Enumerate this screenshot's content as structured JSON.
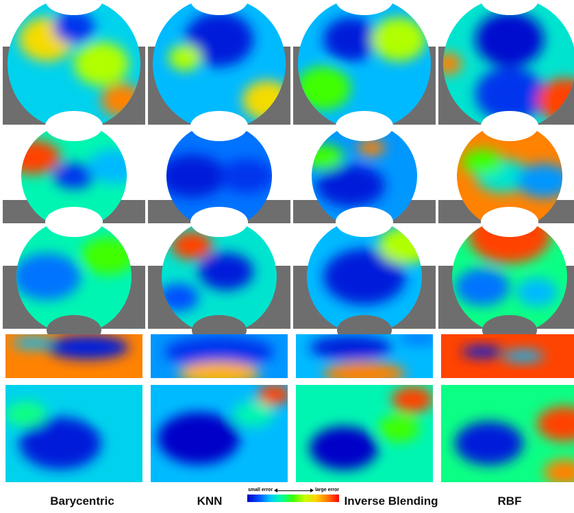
{
  "columns": [
    {
      "label": "Barycentric"
    },
    {
      "label": "KNN"
    },
    {
      "label": "Inverse Blending"
    },
    {
      "label": "RBF"
    }
  ],
  "legend": {
    "small_label": "small error",
    "large_label": "large error",
    "scale": "blue (small error) to red (large error)"
  },
  "colors": {
    "background": "#ffffff",
    "ground_gray": "#6e6e6e",
    "low_error": "#0000c8",
    "mid_error": "#40ff00",
    "high_error": "#ff0000"
  },
  "rows": [
    {
      "shape": "sphere-with-ground",
      "errors": [
        {
          "base": 0.35,
          "blobs": [
            [
              0.3,
              0.3,
              0.2,
              0.8
            ],
            [
              0.7,
              0.5,
              0.2,
              0.7
            ],
            [
              0.85,
              0.8,
              0.15,
              0.9
            ],
            [
              0.5,
              0.2,
              0.15,
              0.1
            ]
          ]
        },
        {
          "base": 0.3,
          "blobs": [
            [
              0.5,
              0.3,
              0.25,
              0.05
            ],
            [
              0.25,
              0.45,
              0.12,
              0.7
            ],
            [
              0.85,
              0.8,
              0.18,
              0.8
            ]
          ]
        },
        {
          "base": 0.3,
          "blobs": [
            [
              0.4,
              0.3,
              0.2,
              0.05
            ],
            [
              0.75,
              0.3,
              0.2,
              0.7
            ],
            [
              0.2,
              0.7,
              0.2,
              0.6
            ]
          ]
        },
        {
          "base": 0.4,
          "blobs": [
            [
              0.5,
              0.3,
              0.25,
              0.02
            ],
            [
              0.5,
              0.75,
              0.25,
              0.1
            ],
            [
              0.9,
              0.8,
              0.2,
              0.95
            ],
            [
              0.05,
              0.5,
              0.1,
              0.9
            ]
          ]
        }
      ]
    },
    {
      "shape": "sphere-with-ground",
      "errors": [
        {
          "base": 0.45,
          "blobs": [
            [
              0.2,
              0.3,
              0.2,
              0.95
            ],
            [
              0.5,
              0.5,
              0.15,
              0.1
            ],
            [
              0.8,
              0.4,
              0.2,
              0.3
            ]
          ]
        },
        {
          "base": 0.2,
          "blobs": [
            [
              0.3,
              0.5,
              0.25,
              0.05
            ],
            [
              0.7,
              0.5,
              0.2,
              0.1
            ]
          ]
        },
        {
          "base": 0.25,
          "blobs": [
            [
              0.4,
              0.6,
              0.25,
              0.05
            ],
            [
              0.55,
              0.2,
              0.1,
              0.9
            ],
            [
              0.2,
              0.3,
              0.15,
              0.6
            ]
          ]
        },
        {
          "base": 0.9,
          "blobs": [
            [
              0.45,
              0.5,
              0.2,
              0.4
            ],
            [
              0.75,
              0.55,
              0.2,
              0.25
            ],
            [
              0.3,
              0.35,
              0.15,
              0.6
            ]
          ]
        }
      ]
    },
    {
      "shape": "sphere-with-ground",
      "errors": [
        {
          "base": 0.45,
          "blobs": [
            [
              0.3,
              0.5,
              0.25,
              0.2
            ],
            [
              0.75,
              0.3,
              0.2,
              0.6
            ]
          ]
        },
        {
          "base": 0.4,
          "blobs": [
            [
              0.55,
              0.45,
              0.2,
              0.05
            ],
            [
              0.3,
              0.2,
              0.15,
              0.95
            ],
            [
              0.2,
              0.7,
              0.15,
              0.15
            ]
          ]
        },
        {
          "base": 0.3,
          "blobs": [
            [
              0.5,
              0.5,
              0.3,
              0.05
            ],
            [
              0.8,
              0.2,
              0.2,
              0.7
            ]
          ]
        },
        {
          "base": 0.5,
          "blobs": [
            [
              0.5,
              0.1,
              0.3,
              0.95
            ],
            [
              0.3,
              0.6,
              0.2,
              0.2
            ],
            [
              0.7,
              0.65,
              0.15,
              0.3
            ]
          ]
        }
      ]
    },
    {
      "shape": "strip",
      "errors": [
        {
          "base": 0.9,
          "blobs": [
            [
              0.6,
              0.3,
              0.3,
              0.05
            ],
            [
              0.2,
              0.2,
              0.15,
              0.3
            ]
          ]
        },
        {
          "base": 0.25,
          "blobs": [
            [
              0.5,
              0.4,
              0.4,
              0.1
            ],
            [
              0.5,
              0.9,
              0.3,
              0.85
            ]
          ]
        },
        {
          "base": 0.3,
          "blobs": [
            [
              0.4,
              0.3,
              0.3,
              0.05
            ],
            [
              0.5,
              0.9,
              0.3,
              0.9
            ],
            [
              0.9,
              0.1,
              0.15,
              0.2
            ]
          ]
        },
        {
          "base": 0.95,
          "blobs": [
            [
              0.3,
              0.4,
              0.15,
              0.05
            ],
            [
              0.6,
              0.5,
              0.15,
              0.3
            ]
          ]
        }
      ]
    },
    {
      "shape": "rect",
      "errors": [
        {
          "base": 0.35,
          "blobs": [
            [
              0.4,
              0.6,
              0.3,
              0.05
            ],
            [
              0.15,
              0.3,
              0.15,
              0.5
            ],
            [
              0.8,
              0.2,
              0.15,
              0.35
            ]
          ]
        },
        {
          "base": 0.3,
          "blobs": [
            [
              0.35,
              0.55,
              0.3,
              0.0
            ],
            [
              0.9,
              0.1,
              0.12,
              0.95
            ],
            [
              0.75,
              0.3,
              0.15,
              0.45
            ]
          ]
        },
        {
          "base": 0.45,
          "blobs": [
            [
              0.35,
              0.65,
              0.25,
              0.0
            ],
            [
              0.85,
              0.15,
              0.15,
              0.95
            ],
            [
              0.75,
              0.45,
              0.15,
              0.6
            ]
          ]
        },
        {
          "base": 0.5,
          "blobs": [
            [
              0.35,
              0.6,
              0.25,
              0.05
            ],
            [
              0.9,
              0.4,
              0.2,
              0.95
            ],
            [
              0.9,
              0.9,
              0.15,
              0.9
            ]
          ]
        }
      ]
    }
  ]
}
